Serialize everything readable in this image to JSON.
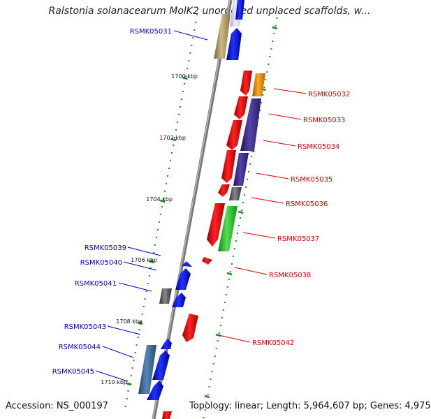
{
  "title": "Ralstonia solanacearum MolK2 unordered unplaced scaffolds, w...",
  "footer": {
    "accession": "Accession: NS_000197",
    "topology": "Topology: linear; Length: 5,964,607 bp; Genes: 4,975"
  },
  "colors": {
    "left_label": "#0000cc",
    "right_label": "#dd0000",
    "tick": "#228822",
    "backbone": "#888888"
  },
  "ruler_ticks": [
    "1700 kbp",
    "1702 kbp",
    "1704 kbp",
    "1706 kbp",
    "1708 kbp",
    "1710 kbp"
  ],
  "genes_left": [
    "RSMK05031",
    "RSMK05039",
    "RSMK05040",
    "RSMK05041",
    "RSMK05043",
    "RSMK05044",
    "RSMK05045"
  ],
  "genes_right": [
    "RSMK05032",
    "RSMK05033",
    "RSMK05034",
    "RSMK05035",
    "RSMK05036",
    "RSMK05037",
    "RSMK05038",
    "RSMK05042"
  ]
}
